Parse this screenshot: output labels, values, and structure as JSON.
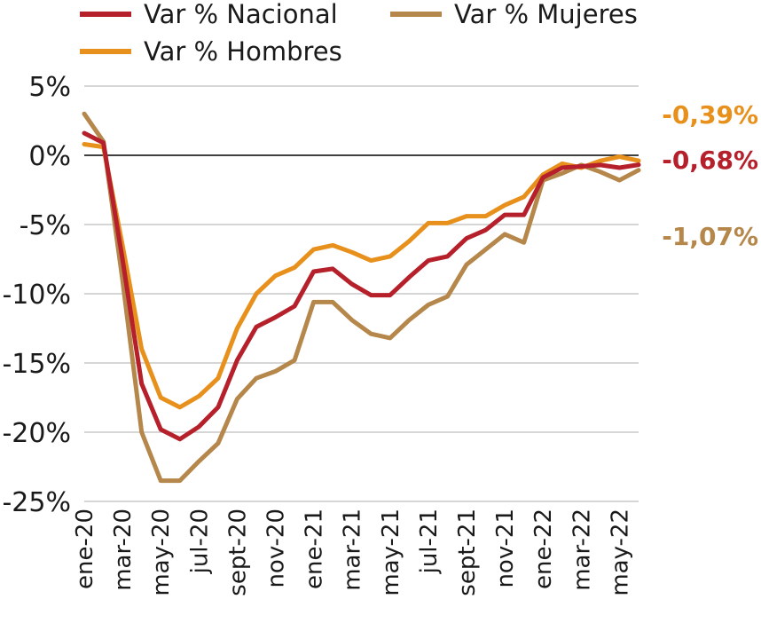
{
  "chart_data": {
    "type": "line",
    "title": "",
    "xlabel": "",
    "ylabel": "",
    "ylim": [
      -25,
      5
    ],
    "y_ticks": [
      "5%",
      "0%",
      "-5%",
      "-10%",
      "-15%",
      "-20%",
      "-25%"
    ],
    "y_tick_values": [
      5,
      0,
      -5,
      -10,
      -15,
      -20,
      -25
    ],
    "grid": true,
    "zero_line": true,
    "legend_position": "top",
    "x_tick_labels": [
      "ene-20",
      "mar-20",
      "may-20",
      "jul-20",
      "sept-20",
      "nov-20",
      "ene-21",
      "mar-21",
      "may-21",
      "jul-21",
      "sept-21",
      "nov-21",
      "ene-22",
      "mar-22",
      "may-22"
    ],
    "x": [
      "ene-20",
      "feb-20",
      "mar-20",
      "abr-20",
      "may-20",
      "jun-20",
      "jul-20",
      "ago-20",
      "sept-20",
      "oct-20",
      "nov-20",
      "dic-20",
      "ene-21",
      "feb-21",
      "mar-21",
      "abr-21",
      "may-21",
      "jun-21",
      "jul-21",
      "ago-21",
      "sept-21",
      "oct-21",
      "nov-21",
      "dic-21",
      "ene-22",
      "feb-22",
      "mar-22",
      "abr-22",
      "may-22",
      "jun-22"
    ],
    "series": [
      {
        "name": "Var % Nacional",
        "color": "#b5202b",
        "end_label": "-0,68%",
        "values": [
          1.6,
          0.9,
          -7.5,
          -16.5,
          -19.8,
          -20.5,
          -19.6,
          -18.2,
          -14.8,
          -12.4,
          -11.7,
          -10.9,
          -8.4,
          -8.2,
          -9.3,
          -10.1,
          -10.1,
          -8.8,
          -7.6,
          -7.3,
          -6.0,
          -5.4,
          -4.3,
          -4.3,
          -1.6,
          -0.9,
          -0.8,
          -0.7,
          -0.9,
          -0.68
        ]
      },
      {
        "name": "Var % Mujeres",
        "color": "#b5874a",
        "end_label": "-1,07%",
        "values": [
          3.0,
          1.0,
          -9.0,
          -20.0,
          -23.5,
          -23.5,
          -22.1,
          -20.8,
          -17.6,
          -16.1,
          -15.6,
          -14.8,
          -10.6,
          -10.6,
          -11.9,
          -12.9,
          -13.2,
          -11.9,
          -10.8,
          -10.2,
          -7.9,
          -6.8,
          -5.7,
          -6.3,
          -1.8,
          -1.3,
          -0.7,
          -1.2,
          -1.8,
          -1.07
        ]
      },
      {
        "name": "Var % Hombres",
        "color": "#e8901c",
        "end_label": "-0,39%",
        "values": [
          0.8,
          0.6,
          -6.5,
          -14.0,
          -17.5,
          -18.2,
          -17.4,
          -16.1,
          -12.5,
          -10.0,
          -8.7,
          -8.1,
          -6.8,
          -6.5,
          -7.0,
          -7.6,
          -7.3,
          -6.2,
          -4.9,
          -4.9,
          -4.4,
          -4.4,
          -3.6,
          -3.0,
          -1.4,
          -0.6,
          -0.9,
          -0.4,
          -0.1,
          -0.39
        ]
      }
    ]
  }
}
